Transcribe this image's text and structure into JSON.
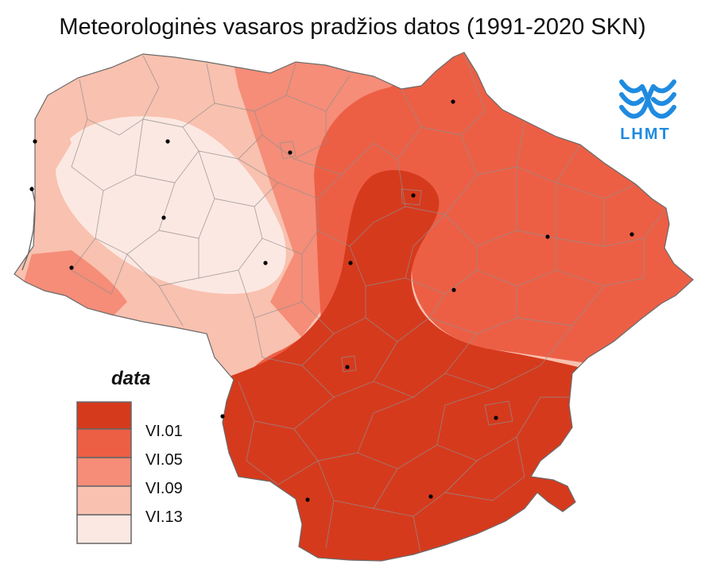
{
  "title": "Meteorologinės vasaros pradžios datos (1991-2020 SKN)",
  "logo": {
    "text": "LHMT",
    "color": "#1f8be0"
  },
  "legend": {
    "title": "data",
    "classes": [
      {
        "color": "#d63a1d"
      },
      {
        "color": "#ec5f45"
      },
      {
        "color": "#f58d78"
      },
      {
        "color": "#f9c1af"
      },
      {
        "color": "#fce8e2"
      }
    ],
    "breaks": [
      "VI.01",
      "VI.05",
      "VI.09",
      "VI.13"
    ]
  }
}
